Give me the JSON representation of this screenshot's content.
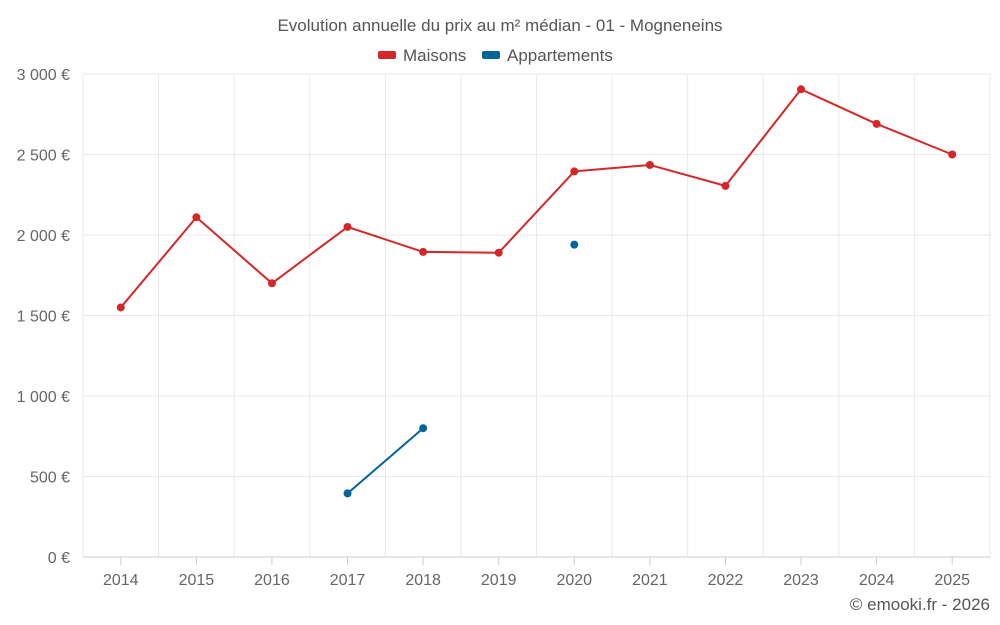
{
  "chart_data": {
    "type": "line",
    "title": "Evolution annuelle du prix au m² médian - 01 - Mogneneins",
    "categories": [
      "2014",
      "2015",
      "2016",
      "2017",
      "2018",
      "2019",
      "2020",
      "2021",
      "2022",
      "2023",
      "2024",
      "2025"
    ],
    "series": [
      {
        "name": "Maisons",
        "color": "#d62728",
        "values": [
          1550,
          2110,
          1700,
          2050,
          1895,
          1890,
          2395,
          2435,
          2305,
          2905,
          2690,
          2500
        ]
      },
      {
        "name": "Appartements",
        "color": "#006699",
        "values": [
          null,
          null,
          null,
          395,
          800,
          null,
          1940,
          null,
          null,
          null,
          null,
          null
        ]
      }
    ],
    "ylim": [
      0,
      3000
    ],
    "yticks": [
      0,
      500,
      1000,
      1500,
      2000,
      2500,
      3000
    ],
    "ytick_labels": [
      "0 €",
      "500 €",
      "1 000 €",
      "1 500 €",
      "2 000 €",
      "2 500 €",
      "3 000 €"
    ],
    "xlabel": "",
    "ylabel": "",
    "grid": true,
    "legend_position": "top-center"
  },
  "credit": "© emooki.fr - 2026"
}
